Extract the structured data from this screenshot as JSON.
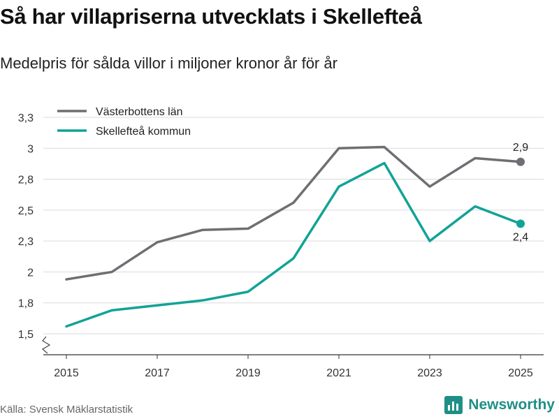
{
  "title": "Så har villapriserna utvecklats i Skellefteå",
  "subtitle": "Medelpris för sålda villor i miljoner kronor år för år",
  "source": "Källa: Svensk Mäklarstatistik",
  "brand": "Newsworthy",
  "colors": {
    "series1": "#6f6e73",
    "series2": "#11a396",
    "grid": "#d9d9d9",
    "brand": "#1f8f86"
  },
  "chart_data": {
    "type": "line",
    "title": "Så har villapriserna utvecklats i Skellefteå",
    "subtitle": "Medelpris för sålda villor i miljoner kronor år för år",
    "xlabel": "",
    "ylabel": "",
    "ylim": [
      1.4,
      3.35
    ],
    "x": [
      2015,
      2016,
      2017,
      2018,
      2019,
      2020,
      2021,
      2022,
      2023,
      2024,
      2025
    ],
    "x_ticks": [
      "2015",
      "2017",
      "2019",
      "2021",
      "2023",
      "2025"
    ],
    "y_ticks": [
      {
        "value": 1.5,
        "label": "1,5"
      },
      {
        "value": 1.75,
        "label": "1,8"
      },
      {
        "value": 2.0,
        "label": "2"
      },
      {
        "value": 2.25,
        "label": "2,3"
      },
      {
        "value": 2.5,
        "label": "2,5"
      },
      {
        "value": 2.75,
        "label": "2,8"
      },
      {
        "value": 3.0,
        "label": "3"
      },
      {
        "value": 3.25,
        "label": "3,3"
      }
    ],
    "grid": true,
    "legend_position": "top-left",
    "series": [
      {
        "name": "Västerbottens län",
        "color": "#6f6e73",
        "values": [
          1.94,
          2.0,
          2.24,
          2.34,
          2.35,
          2.56,
          3.0,
          3.01,
          2.69,
          2.92,
          2.89
        ],
        "end_label": "2,9"
      },
      {
        "name": "Skellefteå kommun",
        "color": "#11a396",
        "values": [
          1.56,
          1.69,
          1.73,
          1.77,
          1.84,
          2.11,
          2.69,
          2.88,
          2.25,
          2.53,
          2.39
        ],
        "end_label": "2,4"
      }
    ]
  }
}
